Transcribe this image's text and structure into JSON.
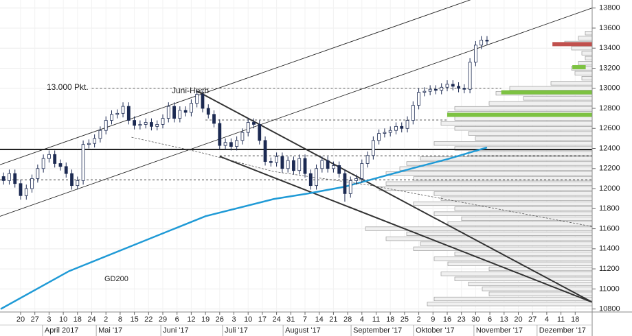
{
  "chart_data": {
    "type": "candlestick",
    "x": [
      -6,
      -4,
      -2,
      0,
      2,
      4,
      6,
      8,
      10,
      12,
      14,
      16,
      18,
      20,
      22,
      24,
      26,
      28,
      30,
      32,
      34,
      36,
      38,
      40,
      42,
      44,
      46,
      48,
      50,
      52,
      54,
      56,
      58,
      60,
      62,
      64,
      66,
      68,
      70,
      72,
      74,
      76,
      78,
      80,
      82,
      84,
      86,
      88,
      90,
      92,
      94,
      96,
      98,
      100,
      102,
      104,
      106,
      108,
      110,
      112,
      114,
      116,
      118,
      120,
      122,
      124,
      126,
      128,
      130,
      132,
      134,
      136,
      138,
      140,
      142,
      144,
      146,
      148,
      150,
      152,
      154,
      156,
      158,
      160,
      162,
      164
    ],
    "open": [
      12120,
      12080,
      12150,
      12050,
      11930,
      12000,
      12100,
      12200,
      12300,
      12340,
      12250,
      12220,
      12150,
      12030,
      12080,
      12440,
      12450,
      12500,
      12580,
      12680,
      12740,
      12750,
      12820,
      12680,
      12630,
      12640,
      12660,
      12620,
      12640,
      12700,
      12820,
      12700,
      12780,
      12760,
      12850,
      12940,
      12800,
      12740,
      12650,
      12430,
      12460,
      12420,
      12480,
      12560,
      12660,
      12640,
      12480,
      12270,
      12260,
      12320,
      12200,
      12280,
      12180,
      12300,
      12150,
      12030,
      12200,
      12280,
      12200,
      12230,
      12150,
      11950,
      12080,
      12100,
      12250,
      12330,
      12480,
      12550,
      12560,
      12580,
      12620,
      12600,
      12680,
      12830,
      12960,
      12970,
      12990,
      12980,
      13010,
      13040,
      13020,
      13000,
      12990,
      13260,
      13430,
      13480
    ],
    "high": [
      12160,
      12190,
      12190,
      12090,
      12040,
      12140,
      12240,
      12340,
      12380,
      12380,
      12290,
      12260,
      12190,
      12120,
      12480,
      12490,
      12540,
      12620,
      12720,
      12780,
      12790,
      12860,
      12860,
      12720,
      12680,
      12700,
      12700,
      12680,
      12740,
      12860,
      12860,
      12820,
      12820,
      12890,
      12980,
      12980,
      12840,
      12780,
      12690,
      12500,
      12500,
      12520,
      12600,
      12700,
      12700,
      12680,
      12520,
      12310,
      12360,
      12360,
      12320,
      12320,
      12340,
      12340,
      12190,
      12240,
      12320,
      12320,
      12270,
      12270,
      12190,
      12120,
      12140,
      12290,
      12370,
      12520,
      12590,
      12600,
      12620,
      12660,
      12660,
      12720,
      12870,
      13000,
      13010,
      13030,
      13030,
      13050,
      13080,
      13080,
      13060,
      13040,
      13300,
      13470,
      13520,
      13520
    ],
    "low": [
      12040,
      12040,
      12010,
      11890,
      11890,
      11960,
      12060,
      12160,
      12260,
      12210,
      12180,
      12110,
      11990,
      11990,
      12040,
      12400,
      12410,
      12460,
      12540,
      12640,
      12700,
      12710,
      12640,
      12590,
      12590,
      12600,
      12580,
      12580,
      12600,
      12660,
      12660,
      12660,
      12720,
      12720,
      12810,
      12760,
      12700,
      12610,
      12390,
      12390,
      12380,
      12380,
      12440,
      12520,
      12600,
      12440,
      12230,
      12220,
      12220,
      12160,
      12160,
      12140,
      12140,
      12110,
      11990,
      11990,
      12160,
      12160,
      12160,
      12110,
      11870,
      11910,
      12040,
      12060,
      12210,
      12290,
      12440,
      12510,
      12520,
      12540,
      12560,
      12560,
      12640,
      12790,
      12920,
      12930,
      12940,
      12940,
      12970,
      12980,
      12960,
      12950,
      12950,
      13220,
      13390,
      13430
    ],
    "close": [
      12080,
      12150,
      12050,
      11930,
      12000,
      12100,
      12200,
      12300,
      12340,
      12250,
      12220,
      12150,
      12030,
      12080,
      12440,
      12450,
      12500,
      12580,
      12680,
      12740,
      12750,
      12820,
      12680,
      12630,
      12640,
      12660,
      12620,
      12640,
      12700,
      12820,
      12700,
      12780,
      12760,
      12850,
      12940,
      12800,
      12740,
      12650,
      12430,
      12460,
      12420,
      12480,
      12560,
      12660,
      12640,
      12480,
      12270,
      12260,
      12320,
      12200,
      12280,
      12180,
      12300,
      12150,
      12030,
      12200,
      12280,
      12200,
      12230,
      12150,
      11950,
      12080,
      12100,
      12250,
      12330,
      12480,
      12550,
      12560,
      12580,
      12620,
      12600,
      12680,
      12830,
      12960,
      12970,
      12990,
      12980,
      13010,
      13040,
      13020,
      13000,
      12990,
      13260,
      13430,
      13480,
      13470
    ],
    "color": "#1c2a52",
    "xlim": [
      -7.25,
      200.97
    ],
    "xticks": [
      {
        "value": 0,
        "label": "20"
      },
      {
        "value": 5,
        "label": "27"
      },
      {
        "value": 10,
        "label": "3"
      },
      {
        "value": 15,
        "label": "10"
      },
      {
        "value": 20,
        "label": "18"
      },
      {
        "value": 25,
        "label": "24"
      },
      {
        "value": 30,
        "label": "2"
      },
      {
        "value": 35,
        "label": "8"
      },
      {
        "value": 40,
        "label": "15"
      },
      {
        "value": 45,
        "label": "22"
      },
      {
        "value": 50,
        "label": "29"
      },
      {
        "value": 55,
        "label": "6"
      },
      {
        "value": 60,
        "label": "12"
      },
      {
        "value": 65,
        "label": "19"
      },
      {
        "value": 70,
        "label": "26"
      },
      {
        "value": 75,
        "label": "3"
      },
      {
        "value": 80,
        "label": "10"
      },
      {
        "value": 85,
        "label": "17"
      },
      {
        "value": 90,
        "label": "24"
      },
      {
        "value": 95,
        "label": "31"
      },
      {
        "value": 100,
        "label": "7"
      },
      {
        "value": 105,
        "label": "14"
      },
      {
        "value": 110,
        "label": "21"
      },
      {
        "value": 115,
        "label": "28"
      },
      {
        "value": 120,
        "label": "4"
      },
      {
        "value": 125,
        "label": "11"
      },
      {
        "value": 130,
        "label": "18"
      },
      {
        "value": 135,
        "label": "25"
      },
      {
        "value": 140,
        "label": "2"
      },
      {
        "value": 145,
        "label": "9"
      },
      {
        "value": 150,
        "label": "16"
      },
      {
        "value": 155,
        "label": "23"
      },
      {
        "value": 160,
        "label": "30"
      },
      {
        "value": 165,
        "label": "6"
      },
      {
        "value": 170,
        "label": "13"
      },
      {
        "value": 175,
        "label": "20"
      },
      {
        "value": 180,
        "label": "27"
      },
      {
        "value": 185,
        "label": "4"
      },
      {
        "value": 190,
        "label": "11"
      },
      {
        "value": 195,
        "label": "18"
      }
    ],
    "month_ticks": [
      {
        "value": 7.7,
        "label": "April 2017"
      },
      {
        "value": 26.6,
        "label": "Mai '17"
      },
      {
        "value": 49.3,
        "label": "Juni '17"
      },
      {
        "value": 71,
        "label": "Juli '17"
      },
      {
        "value": 92.3,
        "label": "August '17"
      },
      {
        "value": 116.2,
        "label": "September '17"
      },
      {
        "value": 138.2,
        "label": "Oktober '17"
      },
      {
        "value": 159.4,
        "label": "November '17"
      },
      {
        "value": 181.6,
        "label": "Dezember '17"
      }
    ],
    "ylim": [
      10770,
      13880
    ],
    "yticks": [
      10800,
      11000,
      11200,
      11400,
      11600,
      11800,
      12000,
      12200,
      12400,
      12600,
      12800,
      13000,
      13200,
      13400,
      13600,
      13800
    ],
    "grid": true,
    "hlines": [
      {
        "value": 12390,
        "style": "solid"
      },
      {
        "value": 13000,
        "from": 25,
        "to": 169,
        "style": "dashed"
      },
      {
        "value": 12684,
        "from": 65,
        "to": 150,
        "style": "dashed"
      },
      {
        "value": 12327,
        "from": 70,
        "style": "dashed"
      },
      {
        "value": 12088,
        "style": "dashed"
      }
    ],
    "levels": [
      {
        "value": 13440,
        "from": 187,
        "color": "#c0504d"
      },
      {
        "value": 13210,
        "from": 194,
        "to": 198.7,
        "color": "#7dc242"
      },
      {
        "value": 12960,
        "from": 169,
        "color": "#7dc242"
      },
      {
        "value": 12735,
        "from": 150,
        "color": "#7dc242"
      }
    ],
    "trendlines": [
      {
        "x": [
          -7.25,
          158.2
        ],
        "values": [
          12238,
          13882
        ],
        "style": "thin"
      },
      {
        "x": [
          -7.25,
          200.97
        ],
        "values": [
          11724,
          13800
        ],
        "style": "thin"
      },
      {
        "x": [
          62.1,
          200.97
        ],
        "values": [
          12971,
          10868
        ],
        "style": "thick"
      },
      {
        "x": [
          70,
          200.97
        ],
        "values": [
          12321,
          10868
        ],
        "style": "thick"
      }
    ],
    "lines": [
      {
        "name": "GD200",
        "color": "#1f9ad6",
        "x": [
          -7,
          17,
          41,
          65,
          89,
          101,
          114,
          123,
          138,
          150,
          164
        ],
        "values": [
          10800,
          11177,
          11451,
          11725,
          11896,
          11951,
          12019,
          12088,
          12204,
          12293,
          12410
        ]
      },
      {
        "color": "#555555",
        "style": "dashed",
        "x": [
          39,
          63,
          89,
          123,
          201
        ],
        "values": [
          12512,
          12362,
          12170,
          12033,
          11622
        ]
      }
    ],
    "volume_profile": {
      "color": "#f0f0f0",
      "prices": [
        10850,
        10900,
        10950,
        11000,
        11050,
        11100,
        11150,
        11200,
        11250,
        11300,
        11350,
        11400,
        11450,
        11500,
        11550,
        11600,
        11650,
        11700,
        11750,
        11800,
        11850,
        11900,
        11950,
        12000,
        12050,
        12100,
        12150,
        12200,
        12250,
        12300,
        12350,
        12400,
        12450,
        12500,
        12550,
        12600,
        12650,
        12700,
        12750,
        12800,
        12850,
        12900,
        12950,
        13000,
        13050,
        13100,
        13150,
        13200,
        13250,
        13300,
        13350,
        13400,
        13450,
        13500,
        13550
      ],
      "values": [
        240,
        230,
        150,
        160,
        180,
        200,
        220,
        150,
        210,
        230,
        200,
        260,
        250,
        300,
        270,
        330,
        210,
        190,
        230,
        200,
        260,
        220,
        230,
        310,
        300,
        260,
        300,
        280,
        270,
        250,
        180,
        200,
        230,
        170,
        180,
        200,
        220,
        200,
        210,
        200,
        150,
        100,
        140,
        120,
        60,
        15,
        25,
        30,
        20,
        10,
        15,
        30,
        40,
        20,
        10
      ]
    },
    "annotations": [
      "13.000 Pkt.",
      "Juni-Hoch"
    ]
  }
}
